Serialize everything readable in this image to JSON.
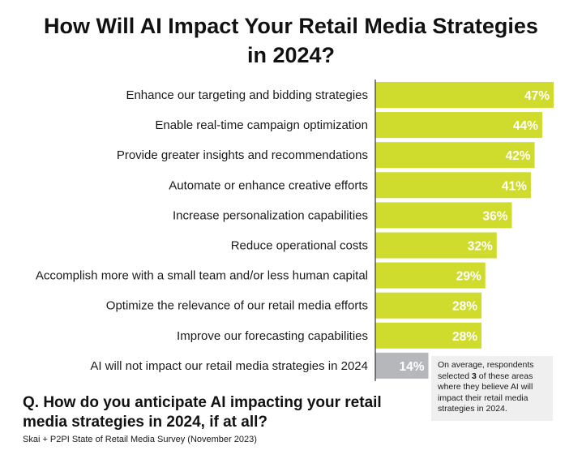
{
  "title": {
    "line1": "How Will AI Impact Your Retail Media Strategies",
    "line2": "in 2024?"
  },
  "chart_data": {
    "type": "bar",
    "orientation": "horizontal",
    "title": "How Will AI Impact Your Retail Media Strategies in 2024?",
    "categories": [
      "Enhance our targeting and bidding strategies",
      "Enable real-time campaign optimization",
      "Provide greater insights and recommendations",
      "Automate or enhance creative efforts",
      "Increase personalization capabilities",
      "Reduce operational costs",
      "Accomplish more with a small team and/or less human capital",
      "Optimize the relevance of our retail media efforts",
      "Improve our forecasting capabilities",
      "AI will not impact our retail media strategies in 2024"
    ],
    "values": [
      47,
      44,
      42,
      41,
      36,
      32,
      29,
      28,
      28,
      14
    ],
    "value_labels": [
      "47%",
      "44%",
      "42%",
      "41%",
      "36%",
      "32%",
      "29%",
      "28%",
      "28%",
      "14%"
    ],
    "unit": "%",
    "xlim": [
      0,
      47
    ],
    "colors": {
      "bar": "#cfdc2e",
      "highlight_bar": "#b5b7ba",
      "axis": "#333333"
    },
    "highlight_index": 9,
    "grid": false,
    "legend": "none"
  },
  "note": {
    "before": "On average, respondents selected ",
    "bold": "3",
    "after": " of these areas where they believe AI will impact their retail media strategies in 2024."
  },
  "question": "Q. How do you anticipate AI impacting your retail media strategies in 2024, if at all?",
  "source": "Skai + P2PI State of Retail Media Survey (November 2023)"
}
